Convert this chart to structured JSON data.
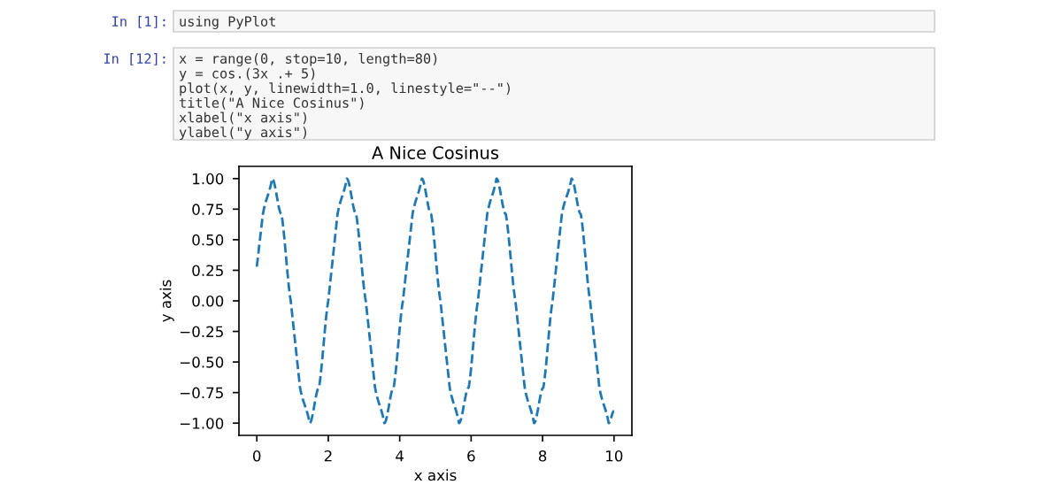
{
  "chart_data": {
    "type": "line",
    "title": "A Nice Cosinus",
    "xlabel": "x axis",
    "ylabel": "y axis",
    "annotations": [
      "In [1]:",
      "using PyPlot",
      "In [12]:",
      "x = range(0, stop=10, length=80)\ny = cos.(3x .+ 5)\nplot(x, y, linewidth=1.0, linestyle=\"--\")\ntitle(\"A Nice Cosinus\")\nxlabel(\"x axis\")\nylabel(\"y axis\")"
    ],
    "series": [
      {
        "color": "#1f77b4",
        "line_style": "dashed",
        "x": [
          0,
          0.17,
          0.43,
          0.69,
          0.95,
          1.21,
          1.48,
          1.74,
          2.0,
          2.26,
          2.52,
          2.78,
          3.05,
          3.31,
          3.57,
          3.83,
          4.09,
          4.36,
          4.62,
          4.88,
          5.14,
          5.4,
          5.66,
          5.93,
          6.19,
          6.45,
          6.71,
          6.97,
          7.24,
          7.5,
          7.76,
          8.02,
          8.28,
          8.54,
          8.81,
          9.07,
          9.33,
          9.59,
          9.85,
          10
        ],
        "values": [
          0.28,
          0.71,
          1.0,
          0.71,
          0,
          -0.71,
          -1.0,
          -0.71,
          0,
          0.71,
          1.0,
          0.71,
          0,
          -0.71,
          -1.0,
          -0.71,
          0,
          0.71,
          1.0,
          0.71,
          0,
          -0.71,
          -1.0,
          -0.71,
          0,
          0.71,
          1.0,
          0.71,
          0,
          -0.71,
          -1.0,
          -0.71,
          0,
          0.71,
          1.0,
          0.71,
          0,
          -0.71,
          -1.0,
          -0.9
        ]
      }
    ],
    "xlim": [
      -0.5,
      10.5
    ],
    "ylim": [
      -1.1,
      1.1
    ],
    "xticks": [
      0,
      2,
      4,
      6,
      8,
      10
    ],
    "yticks": [
      {
        "value": -1,
        "label": "−1.00"
      },
      {
        "value": -0.75,
        "label": "−0.75"
      },
      {
        "value": -0.5,
        "label": "−0.50"
      },
      {
        "value": -0.25,
        "label": "−0.25"
      },
      {
        "value": 0,
        "label": "0.00"
      },
      {
        "value": 0.25,
        "label": "0.25"
      },
      {
        "value": 0.5,
        "label": "0.50"
      },
      {
        "value": 0.75,
        "label": "0.75"
      },
      {
        "value": 1,
        "label": "1.00"
      }
    ],
    "grid": false,
    "marker": "none"
  }
}
